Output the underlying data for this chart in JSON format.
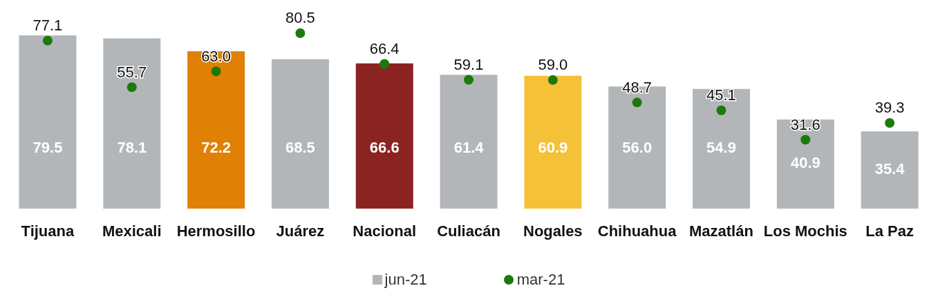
{
  "chart_data": {
    "type": "bar",
    "categories": [
      "Tijuana",
      "Mexicali",
      "Hermosillo",
      "Juárez",
      "Nacional",
      "Culiacán",
      "Nogales",
      "Chihuahua",
      "Mazatlán",
      "Los Mochis",
      "La Paz"
    ],
    "series": [
      {
        "name": "jun-21",
        "color": "#b3b6b9",
        "colors": [
          "#b3b6b9",
          "#b3b6b9",
          "#e08004",
          "#b3b6b9",
          "#8b2323",
          "#b3b6b9",
          "#f4c137",
          "#b3b6b9",
          "#b3b6b9",
          "#b3b6b9",
          "#b3b6b9"
        ],
        "values": [
          79.5,
          78.1,
          72.2,
          68.5,
          66.6,
          61.4,
          60.9,
          56.0,
          54.9,
          40.9,
          35.4
        ],
        "value_labels": [
          "79.5",
          "78.1",
          "72.2",
          "68.5",
          "66.6",
          "61.4",
          "60.9",
          "56.0",
          "54.9",
          "40.9",
          "35.4"
        ]
      },
      {
        "name": "mar-21",
        "type": "scatter",
        "color": "#1c7a0c",
        "values": [
          77.1,
          55.7,
          63.0,
          80.5,
          66.4,
          59.1,
          59.0,
          48.7,
          45.1,
          31.6,
          39.3
        ],
        "value_labels": [
          "77.1",
          "55.7",
          "63.0",
          "80.5",
          "66.4",
          "59.1",
          "59.0",
          "48.7",
          "45.1",
          "31.6",
          "39.3"
        ]
      }
    ],
    "legend": "bottom",
    "marker": "circle"
  }
}
